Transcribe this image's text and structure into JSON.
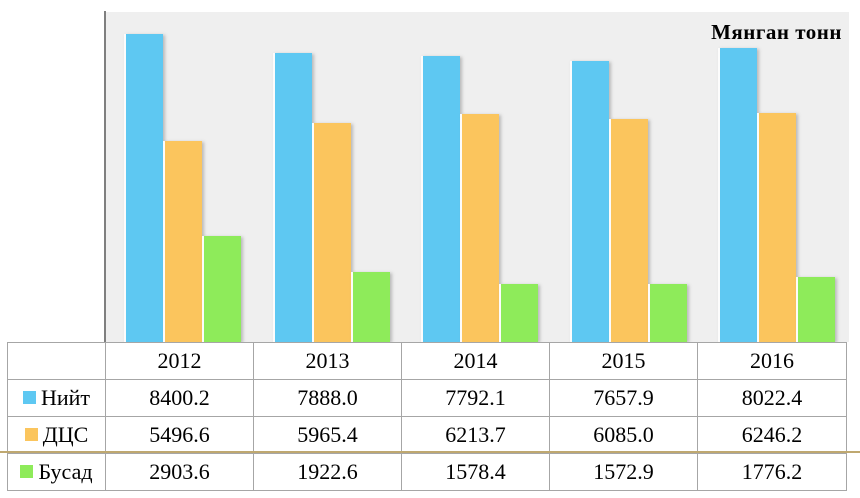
{
  "chart": {
    "unit_label": "Мянган тонн",
    "plot_bg_color": "#efefef",
    "axis_color": "#7f7f7f",
    "highlight_line_color": "#bfa870"
  },
  "chart_data": {
    "type": "bar",
    "title": "Мянган тонн",
    "categories": [
      "2012",
      "2013",
      "2014",
      "2015",
      "2016"
    ],
    "series": [
      {
        "name": "Нийт",
        "color": "#5ec8f2",
        "values": [
          8400.2,
          7888.0,
          7792.1,
          7657.9,
          8022.4
        ]
      },
      {
        "name": "ДЦС",
        "color": "#fbc55d",
        "values": [
          5496.6,
          5965.4,
          6213.7,
          6085.0,
          6246.2
        ]
      },
      {
        "name": "Бусад",
        "color": "#8eeb5a",
        "values": [
          2903.6,
          1922.6,
          1578.4,
          1572.9,
          1776.2
        ]
      }
    ],
    "xlabel": "",
    "ylabel": "",
    "ylim": [
      0,
      9000
    ],
    "grid": false,
    "legend_position": "table-rows-left"
  },
  "table": {
    "years": [
      "2012",
      "2013",
      "2014",
      "2015",
      "2016"
    ],
    "rows": [
      {
        "label": "Нийт",
        "color": "#5ec8f2",
        "values": [
          "8400.2",
          "7888.0",
          "7792.1",
          "7657.9",
          "8022.4"
        ]
      },
      {
        "label": "ДЦС",
        "color": "#fbc55d",
        "values": [
          "5496.6",
          "5965.4",
          "6213.7",
          "6085.0",
          "6246.2"
        ]
      },
      {
        "label": "Бусад",
        "color": "#8eeb5a",
        "values": [
          "2903.6",
          "1922.6",
          "1578.4",
          "1572.9",
          "1776.2"
        ]
      }
    ]
  }
}
